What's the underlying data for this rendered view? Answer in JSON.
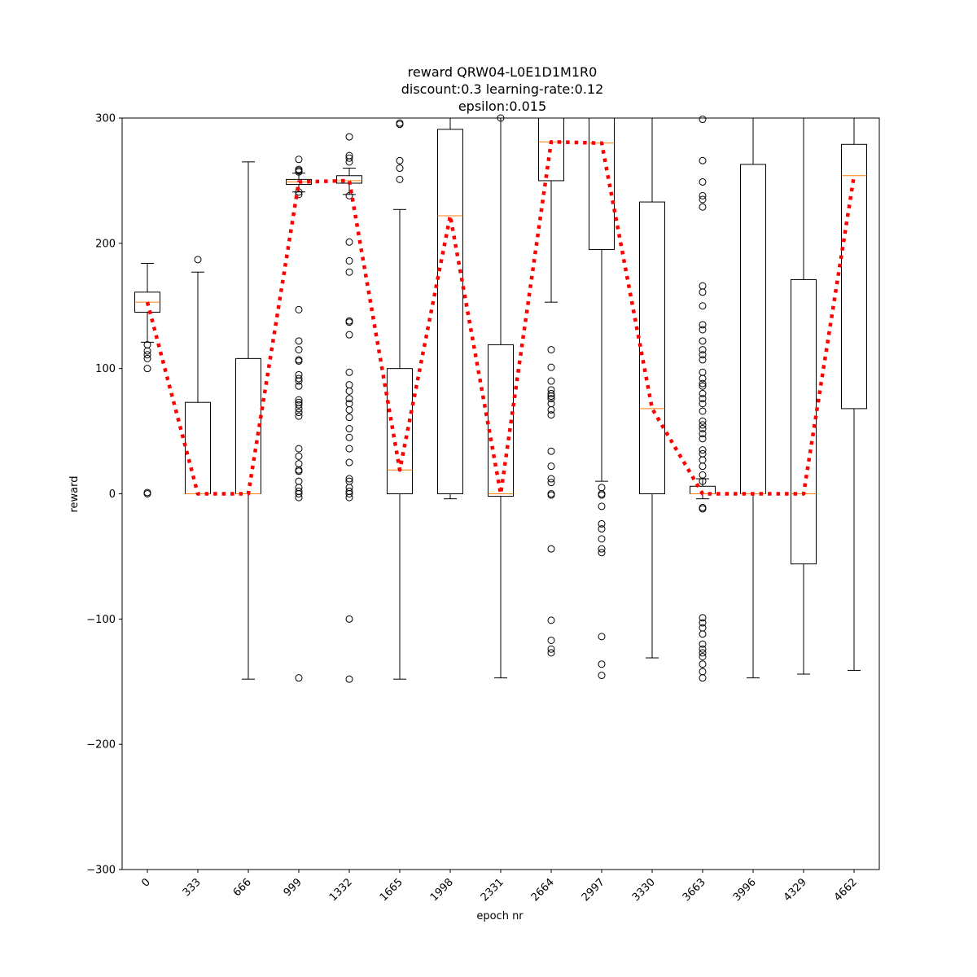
{
  "chart_data": {
    "type": "box",
    "title_lines": [
      "reward QRW04-L0E1D1M1R0",
      "discount:0.3 learning-rate:0.12",
      "epsilon:0.015"
    ],
    "xlabel": "epoch nr",
    "ylabel": "reward",
    "ylim": [
      -300,
      300
    ],
    "yticks": [
      -300,
      -200,
      -100,
      0,
      100,
      200,
      300
    ],
    "ytick_labels": [
      "−300",
      "−200",
      "−100",
      "0",
      "100",
      "200",
      "300"
    ],
    "categories": [
      "0",
      "333",
      "666",
      "999",
      "1332",
      "1665",
      "1998",
      "2331",
      "2664",
      "2997",
      "3330",
      "3663",
      "3996",
      "4329",
      "4662"
    ],
    "grid": false,
    "colors": {
      "box": "#000000",
      "median": "#ff7f0e",
      "mean_line": "#ff0000",
      "outlier": "#000000"
    },
    "boxes": [
      {
        "whislo": 121,
        "q1": 145,
        "med": 153,
        "q3": 161,
        "whishi": 184,
        "fliers": [
          119,
          114,
          111,
          108,
          100,
          1,
          0
        ]
      },
      {
        "whislo": 0,
        "q1": 0,
        "med": 0,
        "q3": 73,
        "whishi": 177,
        "fliers": [
          187
        ]
      },
      {
        "whislo": -148,
        "q1": 0,
        "med": 0,
        "q3": 108,
        "whishi": 265,
        "fliers": []
      },
      {
        "whislo": 241,
        "q1": 247,
        "med": 249,
        "q3": 251,
        "whishi": 256,
        "fliers": [
          267,
          259,
          258,
          257,
          241,
          239,
          147,
          122,
          115,
          107,
          106,
          95,
          92,
          90,
          86,
          75,
          73,
          71,
          68,
          65,
          62,
          36,
          30,
          24,
          19,
          18,
          10,
          5,
          2,
          0,
          -3,
          -147
        ]
      },
      {
        "whislo": 239,
        "q1": 248,
        "med": 250,
        "q3": 254,
        "whishi": 260,
        "fliers": [
          285,
          270,
          268,
          265,
          238,
          201,
          186,
          177,
          138,
          137,
          127,
          97,
          87,
          82,
          76,
          72,
          67,
          61,
          52,
          45,
          36,
          25,
          12,
          10,
          5,
          2,
          0,
          -3,
          -100,
          -148
        ]
      },
      {
        "whislo": -148,
        "q1": 0,
        "med": 19,
        "q3": 100,
        "whishi": 227,
        "fliers": [
          296,
          295,
          266,
          260,
          251
        ]
      },
      {
        "whislo": -4,
        "q1": 0,
        "med": 222,
        "q3": 291,
        "whishi": 300,
        "fliers": []
      },
      {
        "whislo": -147,
        "q1": -2,
        "med": 0,
        "q3": 119,
        "whishi": 300,
        "fliers": [
          300
        ]
      },
      {
        "whislo": 153,
        "q1": 250,
        "med": 281,
        "q3": 300,
        "whishi": 300,
        "fliers": [
          115,
          101,
          90,
          83,
          80,
          78,
          76,
          72,
          67,
          63,
          34,
          22,
          12,
          9,
          0,
          -1,
          -44,
          -101,
          -117,
          -124,
          -127
        ]
      },
      {
        "whislo": 10,
        "q1": 195,
        "med": 280,
        "q3": 300,
        "whishi": 300,
        "fliers": [
          5,
          0,
          -1,
          -10,
          -24,
          -28,
          -36,
          -44,
          -47,
          -114,
          -136,
          -145
        ]
      },
      {
        "whislo": -131,
        "q1": 0,
        "med": 68,
        "q3": 233,
        "whishi": 300,
        "fliers": []
      },
      {
        "whislo": -4,
        "q1": 0,
        "med": 0,
        "q3": 6,
        "whishi": 12,
        "fliers": [
          299,
          266,
          249,
          238,
          235,
          229,
          166,
          161,
          150,
          135,
          131,
          122,
          115,
          111,
          107,
          97,
          92,
          88,
          86,
          80,
          76,
          72,
          66,
          58,
          55,
          52,
          48,
          44,
          35,
          32,
          27,
          22,
          15,
          10,
          -11,
          -12,
          -99,
          -103,
          -107,
          -112,
          -120,
          -124,
          -127,
          -130,
          -136,
          -142,
          -147
        ]
      },
      {
        "whislo": -147,
        "q1": 0,
        "med": 0,
        "q3": 263,
        "whishi": 300,
        "fliers": []
      },
      {
        "whislo": -144,
        "q1": -56,
        "med": 0,
        "q3": 171,
        "whishi": 300,
        "fliers": []
      },
      {
        "whislo": -141,
        "q1": 68,
        "med": 254,
        "q3": 279,
        "whishi": 300,
        "fliers": []
      }
    ]
  }
}
